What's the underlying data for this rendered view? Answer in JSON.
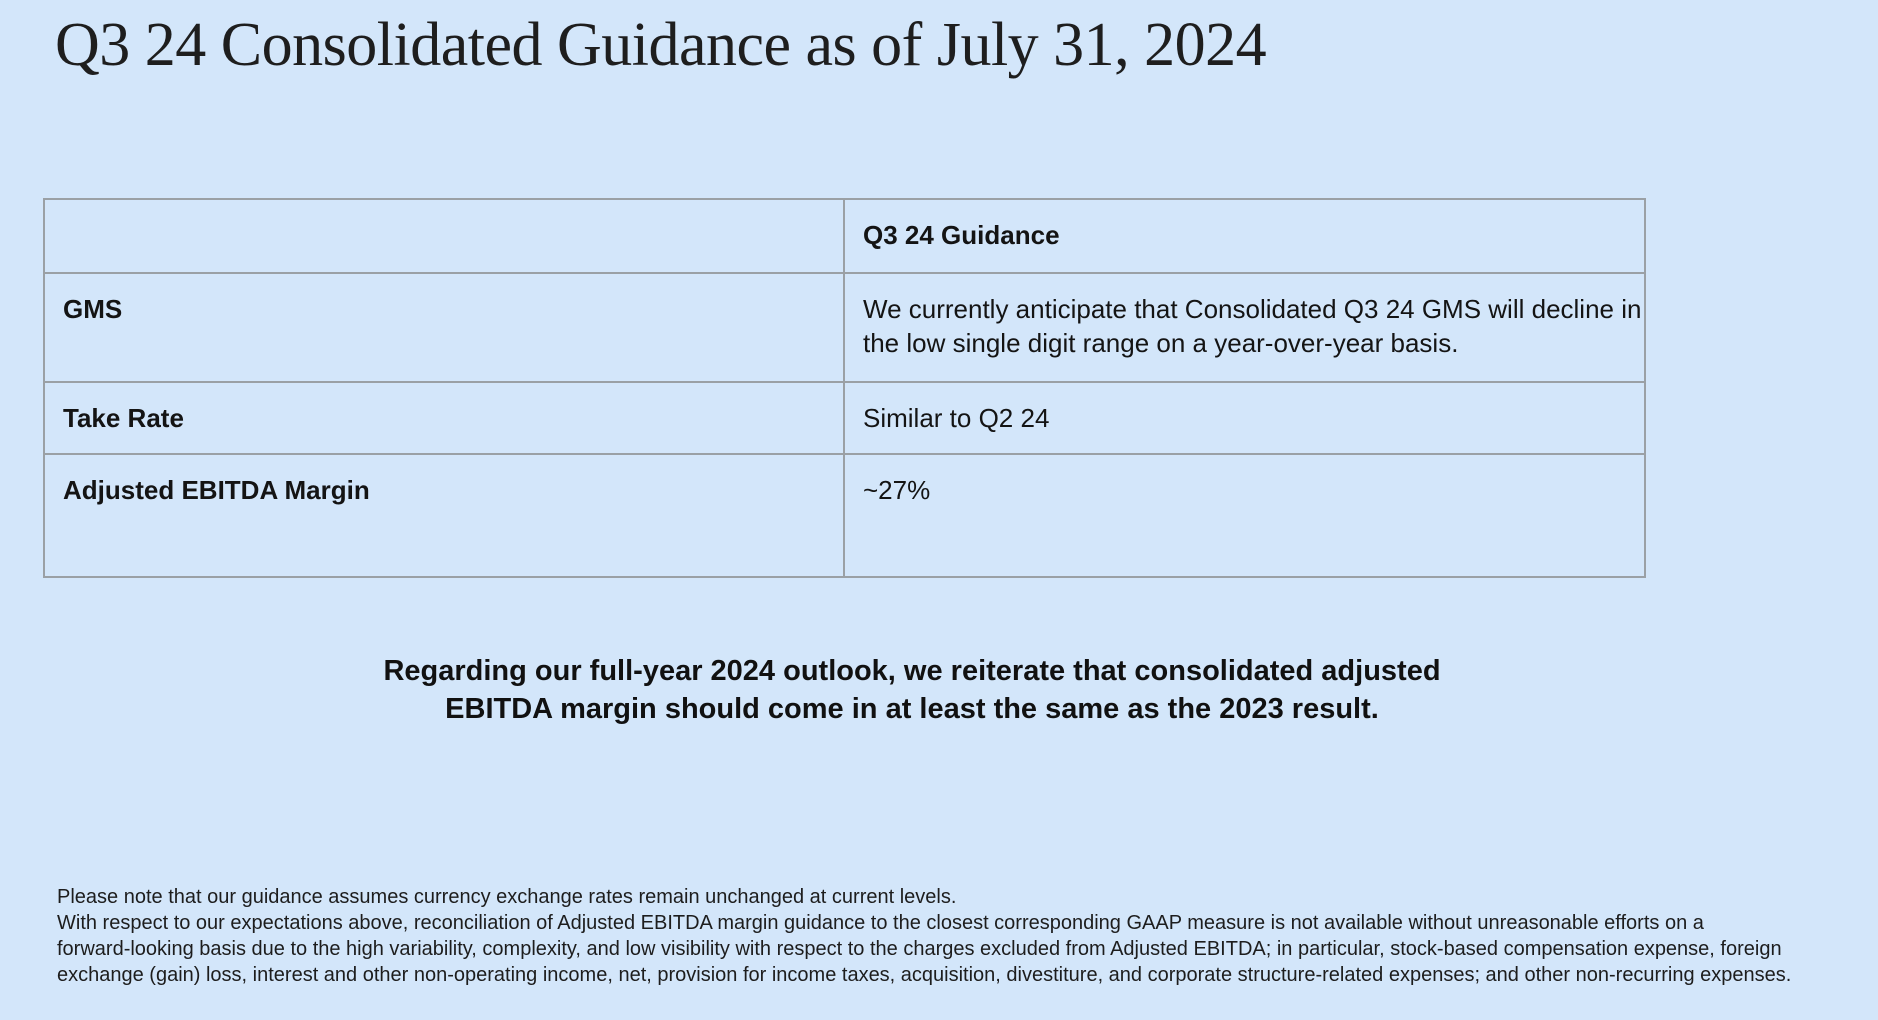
{
  "slide": {
    "title": "Q3 24 Consolidated Guidance as of July 31, 2024",
    "background_color": "#d3e6fa",
    "table_border_color": "#9aa0a5",
    "text_color": "#1b1b1b"
  },
  "table": {
    "header": {
      "col1": "",
      "col2": "Q3 24 Guidance"
    },
    "rows": [
      {
        "label": "GMS",
        "value_line1": "We currently anticipate that Consolidated Q3 24 GMS will decline in",
        "value_line2": "the low single digit range on a year-over-year basis."
      },
      {
        "label": "Take Rate",
        "value_line1": "Similar to Q2 24",
        "value_line2": ""
      },
      {
        "label": "Adjusted EBITDA Margin",
        "value_line1": "~27%",
        "value_line2": ""
      }
    ]
  },
  "outlook": {
    "line1": "Regarding our full-year 2024 outlook, we reiterate that consolidated adjusted",
    "line2": "EBITDA margin should come in at least the same as the 2023 result."
  },
  "footnotes": {
    "line1": "Please note that our guidance assumes currency exchange rates remain unchanged at current levels.",
    "line2": "With respect to our expectations above, reconciliation of Adjusted EBITDA margin guidance to the closest corresponding GAAP measure is not available without unreasonable efforts on a",
    "line3": "forward-looking basis due to the high variability, complexity, and low visibility with respect to the charges excluded from Adjusted EBITDA; in particular, stock-based compensation expense, foreign",
    "line4": "exchange (gain) loss, interest and other non-operating income, net, provision for income taxes, acquisition, divestiture, and corporate structure-related expenses; and other non-recurring expenses."
  }
}
